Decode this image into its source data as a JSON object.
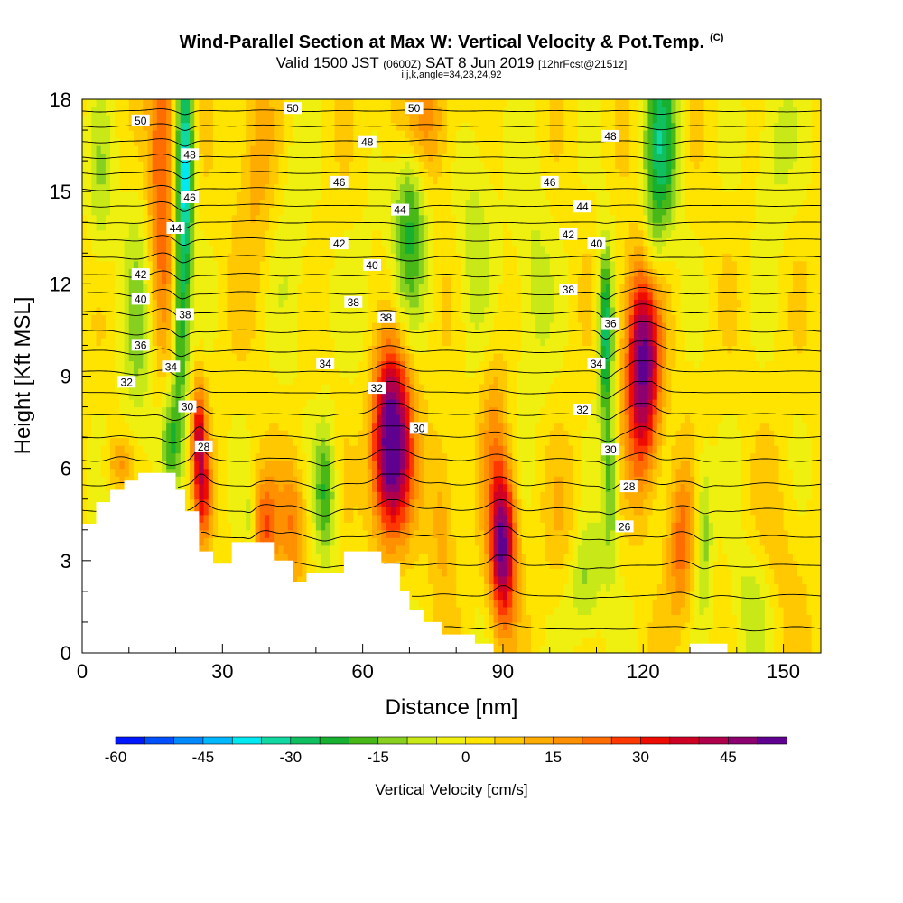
{
  "title": "Wind-Parallel Section at Max W: Vertical Velocity & Pot.Temp.",
  "title_tag": "(C)",
  "subtitle_main": "Valid 1500 JST",
  "subtitle_zulu": "(0600Z)",
  "subtitle_date": "SAT 8 Jun 2019",
  "subtitle_fcst": "[12hrFcst@2151z]",
  "subtitle2": "i,j,k,angle=34,23,24,92",
  "chart_data": {
    "type": "heatmap",
    "title": "Wind-Parallel Section at Max W: Vertical Velocity & Pot.Temp.",
    "xlabel": "Distance [nm]",
    "ylabel": "Height [Kft MSL]",
    "xlim": [
      0,
      158
    ],
    "ylim": [
      0,
      18
    ],
    "x_ticks": [
      0,
      30,
      60,
      90,
      120,
      150
    ],
    "y_ticks": [
      0,
      3,
      6,
      9,
      12,
      15,
      18
    ],
    "colorbar": {
      "title": "Vertical Velocity [cm/s]",
      "min": -60,
      "max": 55,
      "step": 5,
      "tick_values": [
        -60,
        -45,
        -30,
        -15,
        0,
        15,
        30,
        45
      ],
      "tick_labels": [
        "-60",
        "-45",
        "-30",
        "-15",
        "0",
        "15",
        "30",
        "45"
      ],
      "colors": [
        "#0018ff",
        "#0050ff",
        "#0088ff",
        "#00b8ff",
        "#00e8f0",
        "#10d8a0",
        "#10c060",
        "#18b030",
        "#48b818",
        "#88d020",
        "#c8e818",
        "#f0f010",
        "#ffe400",
        "#ffc800",
        "#ffac00",
        "#ff9000",
        "#ff6c00",
        "#ff3800",
        "#ee0c00",
        "#d00024",
        "#b0004c",
        "#8c0070",
        "#600090"
      ]
    },
    "terrain": [
      [
        0,
        4.2
      ],
      [
        3,
        4.2
      ],
      [
        3,
        4.9
      ],
      [
        6,
        4.9
      ],
      [
        6,
        5.3
      ],
      [
        9,
        5.3
      ],
      [
        9,
        5.6
      ],
      [
        12,
        5.6
      ],
      [
        12,
        5.85
      ],
      [
        20,
        5.85
      ],
      [
        20,
        5.3
      ],
      [
        22,
        5.3
      ],
      [
        22,
        4.6
      ],
      [
        25,
        4.6
      ],
      [
        25,
        3.3
      ],
      [
        28,
        3.3
      ],
      [
        28,
        2.9
      ],
      [
        32,
        2.9
      ],
      [
        32,
        3.6
      ],
      [
        41,
        3.6
      ],
      [
        41,
        3.0
      ],
      [
        45,
        3.0
      ],
      [
        45,
        2.3
      ],
      [
        48,
        2.3
      ],
      [
        48,
        2.6
      ],
      [
        56,
        2.6
      ],
      [
        56,
        3.3
      ],
      [
        64,
        3.3
      ],
      [
        64,
        2.9
      ],
      [
        68,
        2.9
      ],
      [
        68,
        2.0
      ],
      [
        70,
        2.0
      ],
      [
        70,
        1.4
      ],
      [
        73,
        1.4
      ],
      [
        73,
        1.0
      ],
      [
        77,
        1.0
      ],
      [
        77,
        0.6
      ],
      [
        84,
        0.6
      ],
      [
        84,
        0.3
      ],
      [
        88,
        0.3
      ],
      [
        88,
        0.0
      ],
      [
        130,
        0.0
      ],
      [
        130,
        0.3
      ],
      [
        138,
        0.3
      ],
      [
        138,
        0.0
      ],
      [
        158,
        0.0
      ]
    ],
    "updrafts": [
      {
        "x": 17,
        "y": 16,
        "sx": 2.2,
        "sy": 4.0,
        "w": 26
      },
      {
        "x": 25,
        "y": 7.0,
        "sx": 1.1,
        "sy": 1.3,
        "w": 32
      },
      {
        "x": 26,
        "y": 5.0,
        "sx": 1.2,
        "sy": 1.2,
        "w": 22
      },
      {
        "x": 39,
        "y": 4.0,
        "sx": 2.0,
        "sy": 1.3,
        "w": 22
      },
      {
        "x": 45,
        "y": 4.2,
        "sx": 2.0,
        "sy": 1.5,
        "w": 18
      },
      {
        "x": 66,
        "y": 6.3,
        "sx": 3.0,
        "sy": 1.8,
        "w": 55
      },
      {
        "x": 66,
        "y": 8.8,
        "sx": 3.0,
        "sy": 1.5,
        "w": 22
      },
      {
        "x": 72,
        "y": 17.3,
        "sx": 5.0,
        "sy": 1.5,
        "w": 18
      },
      {
        "x": 90,
        "y": 3.5,
        "sx": 2.0,
        "sy": 1.8,
        "w": 50
      },
      {
        "x": 88,
        "y": 7.5,
        "sx": 2.0,
        "sy": 2.0,
        "w": 12
      },
      {
        "x": 77,
        "y": 4.5,
        "sx": 2.0,
        "sy": 2.0,
        "w": 12
      },
      {
        "x": 104,
        "y": 3.5,
        "sx": 3.0,
        "sy": 2.0,
        "w": 10
      },
      {
        "x": 120,
        "y": 8.6,
        "sx": 2.5,
        "sy": 2.2,
        "w": 40
      },
      {
        "x": 120,
        "y": 11.0,
        "sx": 3.0,
        "sy": 1.8,
        "w": 20
      },
      {
        "x": 128,
        "y": 3.5,
        "sx": 2.0,
        "sy": 1.8,
        "w": 20
      },
      {
        "x": 8,
        "y": 6.2,
        "sx": 2.0,
        "sy": 0.6,
        "w": 14
      },
      {
        "x": 37,
        "y": 16.0,
        "sx": 3.0,
        "sy": 3.0,
        "w": 10
      },
      {
        "x": 148,
        "y": 3.0,
        "sx": 4.0,
        "sy": 2.0,
        "w": 6
      }
    ],
    "downdrafts": [
      {
        "x": 22,
        "y": 16.0,
        "sx": 1.3,
        "sy": 2.5,
        "w": -40
      },
      {
        "x": 21,
        "y": 11.0,
        "sx": 1.3,
        "sy": 2.5,
        "w": -25
      },
      {
        "x": 19,
        "y": 7.0,
        "sx": 1.5,
        "sy": 1.2,
        "w": -18
      },
      {
        "x": 12,
        "y": 10.5,
        "sx": 2.5,
        "sy": 3.5,
        "w": -12
      },
      {
        "x": 4,
        "y": 15.0,
        "sx": 2.0,
        "sy": 2.0,
        "w": -10
      },
      {
        "x": 52,
        "y": 5.2,
        "sx": 1.6,
        "sy": 1.6,
        "w": -22
      },
      {
        "x": 70,
        "y": 14.5,
        "sx": 2.5,
        "sy": 2.5,
        "w": -24
      },
      {
        "x": 112,
        "y": 10.5,
        "sx": 1.1,
        "sy": 2.0,
        "w": -32
      },
      {
        "x": 113,
        "y": 5.5,
        "sx": 1.2,
        "sy": 2.0,
        "w": -18
      },
      {
        "x": 107,
        "y": 2.3,
        "sx": 3.0,
        "sy": 1.5,
        "w": -18
      },
      {
        "x": 124,
        "y": 16.5,
        "sx": 2.5,
        "sy": 2.2,
        "w": -28
      },
      {
        "x": 122,
        "y": 13.0,
        "sx": 1.8,
        "sy": 1.5,
        "w": -12
      },
      {
        "x": 133,
        "y": 4.0,
        "sx": 1.2,
        "sy": 1.8,
        "w": -16
      },
      {
        "x": 36,
        "y": 4.3,
        "sx": 0.8,
        "sy": 1.0,
        "w": -12
      },
      {
        "x": 84,
        "y": 14.0,
        "sx": 3.0,
        "sy": 3.0,
        "w": -9
      },
      {
        "x": 96,
        "y": 12.0,
        "sx": 3.0,
        "sy": 3.0,
        "w": -9
      },
      {
        "x": 62,
        "y": 10.0,
        "sx": 3.0,
        "sy": 3.0,
        "w": -7
      },
      {
        "x": 143,
        "y": 1.5,
        "sx": 3.0,
        "sy": 1.5,
        "w": -12
      },
      {
        "x": 148,
        "y": 16.5,
        "sx": 3.0,
        "sy": 2.0,
        "w": -10
      },
      {
        "x": 45,
        "y": 13.0,
        "sx": 3.0,
        "sy": 3.0,
        "w": -6
      }
    ],
    "theta_contours": {
      "levels": [
        25,
        26,
        27,
        28,
        29,
        30,
        31,
        32,
        33,
        34,
        35,
        36,
        37,
        38,
        39,
        40,
        41,
        42,
        43,
        44,
        45,
        46,
        47,
        48,
        49,
        50
      ],
      "labels": [
        {
          "text": "50",
          "x": 12.5,
          "y": 17.3
        },
        {
          "text": "50",
          "x": 45,
          "y": 17.7
        },
        {
          "text": "50",
          "x": 71,
          "y": 17.7
        },
        {
          "text": "48",
          "x": 23,
          "y": 16.2
        },
        {
          "text": "48",
          "x": 61,
          "y": 16.6
        },
        {
          "text": "48",
          "x": 113,
          "y": 16.8
        },
        {
          "text": "46",
          "x": 23,
          "y": 14.8
        },
        {
          "text": "46",
          "x": 55,
          "y": 15.3
        },
        {
          "text": "46",
          "x": 100,
          "y": 15.3
        },
        {
          "text": "44",
          "x": 20,
          "y": 13.8
        },
        {
          "text": "44",
          "x": 68,
          "y": 14.4
        },
        {
          "text": "44",
          "x": 107,
          "y": 14.5
        },
        {
          "text": "42",
          "x": 12.5,
          "y": 12.3
        },
        {
          "text": "42",
          "x": 55,
          "y": 13.3
        },
        {
          "text": "42",
          "x": 104,
          "y": 13.6
        },
        {
          "text": "40",
          "x": 12.5,
          "y": 11.5
        },
        {
          "text": "40",
          "x": 62,
          "y": 12.6
        },
        {
          "text": "40",
          "x": 110,
          "y": 13.3
        },
        {
          "text": "38",
          "x": 22,
          "y": 11.0
        },
        {
          "text": "38",
          "x": 58,
          "y": 11.4
        },
        {
          "text": "38",
          "x": 104,
          "y": 11.8
        },
        {
          "text": "38",
          "x": 65,
          "y": 10.9
        },
        {
          "text": "36",
          "x": 12.5,
          "y": 10.0
        },
        {
          "text": "36",
          "x": 113,
          "y": 10.7
        },
        {
          "text": "34",
          "x": 19,
          "y": 9.3
        },
        {
          "text": "34",
          "x": 52,
          "y": 9.4
        },
        {
          "text": "34",
          "x": 110,
          "y": 9.4
        },
        {
          "text": "32",
          "x": 9.5,
          "y": 8.8
        },
        {
          "text": "32",
          "x": 63,
          "y": 8.6
        },
        {
          "text": "32",
          "x": 107,
          "y": 7.9
        },
        {
          "text": "30",
          "x": 22.5,
          "y": 8.0
        },
        {
          "text": "30",
          "x": 72,
          "y": 7.3
        },
        {
          "text": "30",
          "x": 113,
          "y": 6.6
        },
        {
          "text": "28",
          "x": 26,
          "y": 6.7
        },
        {
          "text": "28",
          "x": 117,
          "y": 5.4
        },
        {
          "text": "26",
          "x": 116,
          "y": 4.1
        }
      ]
    }
  }
}
